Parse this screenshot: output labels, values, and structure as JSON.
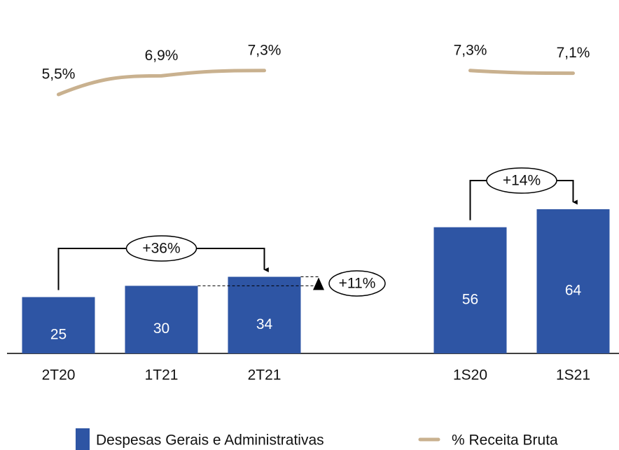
{
  "chart_data": {
    "type": "bar",
    "categories": [
      "2T20",
      "1T21",
      "2T21",
      null,
      "1S20",
      "1S21"
    ],
    "series": [
      {
        "name": "Despesas Gerais e Administrativas",
        "type": "bar",
        "color": "#2e55a4",
        "values": [
          25,
          30,
          34,
          null,
          56,
          64
        ]
      },
      {
        "name": "% Receita Bruta",
        "type": "line",
        "color": "#c9b18f",
        "values": [
          5.5,
          6.9,
          7.3,
          null,
          7.3,
          7.1
        ],
        "value_labels": [
          "5,5%",
          "6,9%",
          "7,3%",
          null,
          "7,3%",
          "7,1%"
        ]
      }
    ],
    "annotations": [
      "+36%",
      "+11%",
      "+14%"
    ]
  }
}
